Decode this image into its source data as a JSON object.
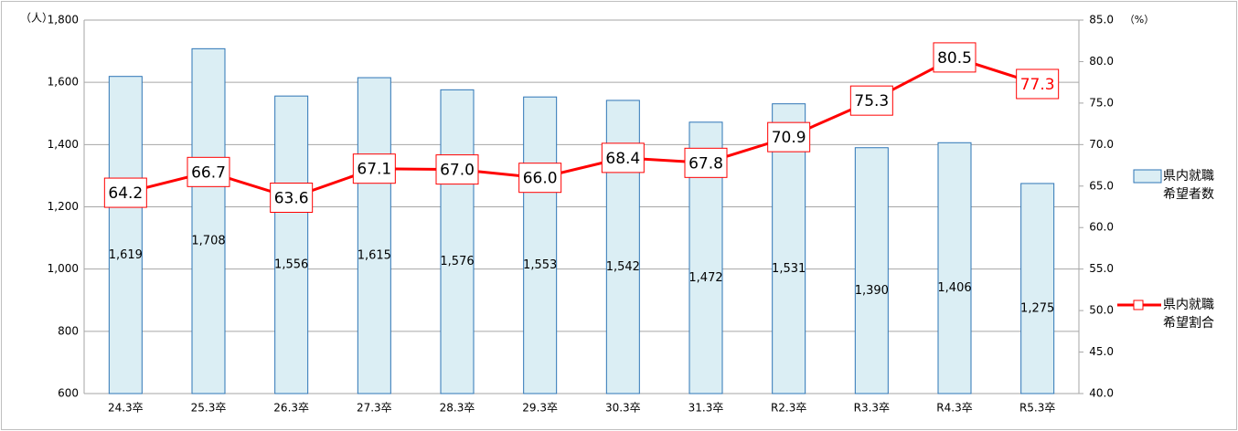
{
  "chart_data": {
    "type": "combo",
    "y_unit": "（人）",
    "y2_unit": "（%）",
    "categories": [
      "24.3卒",
      "25.3卒",
      "26.3卒",
      "27.3卒",
      "28.3卒",
      "29.3卒",
      "30.3卒",
      "31.3卒",
      "R2.3卒",
      "R3.3卒",
      "R4.3卒",
      "R5.3卒"
    ],
    "series": [
      {
        "name": "県内就職希望者数",
        "type": "bar",
        "color": "#dbeef4",
        "edge_color": "#2e75b6",
        "values": [
          1619,
          1708,
          1556,
          1615,
          1576,
          1553,
          1542,
          1472,
          1531,
          1390,
          1406,
          1275
        ],
        "value_labels": [
          "1,619",
          "1,708",
          "1,556",
          "1,615",
          "1,576",
          "1,553",
          "1,542",
          "1,472",
          "1,531",
          "1,390",
          "1,406",
          "1,275"
        ]
      },
      {
        "name": "県内就職希望割合",
        "type": "line",
        "axis": "y2",
        "color": "#ff0000",
        "values": [
          64.2,
          66.7,
          63.6,
          67.1,
          67.0,
          66.0,
          68.4,
          67.8,
          70.9,
          75.3,
          80.5,
          77.3
        ],
        "value_labels": [
          "64.2",
          "66.7",
          "63.6",
          "67.1",
          "67.0",
          "66.0",
          "68.4",
          "67.8",
          "70.9",
          "75.3",
          "80.5",
          "77.3"
        ],
        "value_label_colors": [
          "#000000",
          "#000000",
          "#000000",
          "#000000",
          "#000000",
          "#000000",
          "#000000",
          "#000000",
          "#000000",
          "#000000",
          "#000000",
          "#ff0000"
        ]
      }
    ],
    "ylim": [
      600,
      1800
    ],
    "yticks": [
      {
        "value": 600,
        "label": "600"
      },
      {
        "value": 800,
        "label": "800"
      },
      {
        "value": 1000,
        "label": "1,000"
      },
      {
        "value": 1200,
        "label": "1,200"
      },
      {
        "value": 1400,
        "label": "1,400"
      },
      {
        "value": 1600,
        "label": "1,600"
      },
      {
        "value": 1800,
        "label": "1,800"
      }
    ],
    "y2lim": [
      40,
      85
    ],
    "y2ticks": [
      {
        "value": 40,
        "label": "40.0"
      },
      {
        "value": 45,
        "label": "45.0"
      },
      {
        "value": 50,
        "label": "50.0"
      },
      {
        "value": 55,
        "label": "55.0"
      },
      {
        "value": 60,
        "label": "60.0"
      },
      {
        "value": 65,
        "label": "65.0"
      },
      {
        "value": 70,
        "label": "70.0"
      },
      {
        "value": 75,
        "label": "75.0"
      },
      {
        "value": 80,
        "label": "80.0"
      },
      {
        "value": 85,
        "label": "85.0"
      }
    ],
    "grid": true
  }
}
